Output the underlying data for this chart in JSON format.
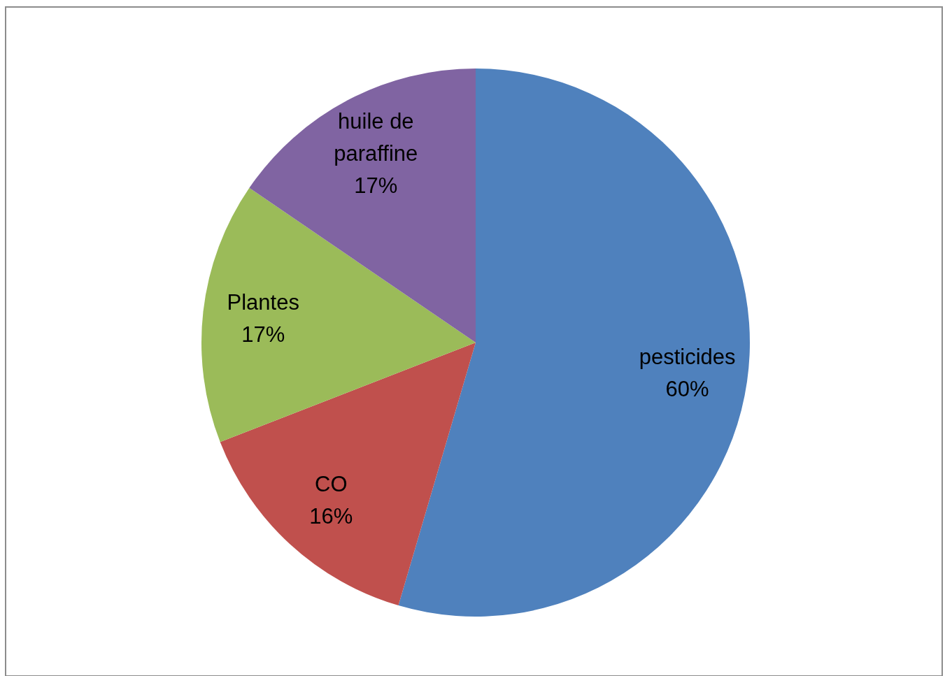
{
  "chart_data": {
    "type": "pie",
    "categories": [
      "pesticides",
      "CO",
      "Plantes",
      "huile de paraffine"
    ],
    "values": [
      60,
      16,
      17,
      17
    ],
    "value_labels": [
      "60%",
      "16%",
      "17%",
      "17%"
    ],
    "colors": [
      "#4f81bd",
      "#c0504d",
      "#9bbb59",
      "#8064a2"
    ],
    "legend": false
  }
}
